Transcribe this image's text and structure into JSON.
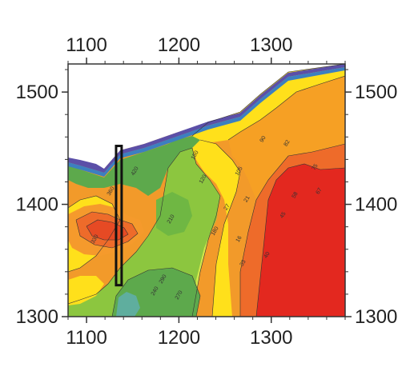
{
  "chart_data": {
    "type": "heatmap",
    "title": "",
    "xlabel": "",
    "ylabel": "",
    "xlim": [
      1080,
      1380
    ],
    "ylim": [
      1300,
      1525
    ],
    "x_ticks": [
      1100,
      1200,
      1300
    ],
    "y_ticks": [
      1300,
      1400,
      1500
    ],
    "x_tick_labels": [
      "1100",
      "1200",
      "1300"
    ],
    "y_tick_labels": [
      "1300",
      "1400",
      "1500"
    ],
    "grid": false,
    "legend": "none",
    "contour_labels": [
      "16",
      "21",
      "27",
      "33",
      "40",
      "45",
      "58",
      "67",
      "75",
      "82",
      "90",
      "105",
      "120",
      "150",
      "180",
      "210",
      "240",
      "270",
      "290",
      "330",
      "360",
      "420"
    ],
    "highlight_box": {
      "x": [
        1132,
        1138
      ],
      "y": [
        1328,
        1452
      ]
    },
    "regions": [
      {
        "name": "purple",
        "color": "#5b4fa8",
        "x": [
          1080,
          1110,
          1130,
          1165,
          1210,
          1245,
          1290,
          1325,
          1370,
          1380,
          1380,
          1325,
          1290,
          1245,
          1210,
          1165,
          1130,
          1110,
          1080
        ],
        "y": [
          1446,
          1442,
          1434,
          1455,
          1465,
          1476,
          1487,
          1508,
          1516,
          1516,
          1518,
          1520,
          1490,
          1481,
          1470,
          1460,
          1438,
          1446,
          1450
        ]
      },
      {
        "name": "blue",
        "color": "#3c6fbf",
        "x": [
          1080,
          1110,
          1130,
          1160,
          1210,
          1245,
          1290,
          1325,
          1380,
          1380,
          1325,
          1290,
          1245,
          1210,
          1160,
          1130,
          1110,
          1080
        ],
        "y": [
          1440,
          1436,
          1430,
          1450,
          1460,
          1472,
          1482,
          1500,
          1512,
          1516,
          1508,
          1487,
          1476,
          1465,
          1455,
          1434,
          1442,
          1446
        ]
      },
      {
        "name": "teal",
        "color": "#5fae9e",
        "x": [
          1135,
          1140,
          1150,
          1160,
          1165,
          1160,
          1150,
          1140
        ],
        "y": [
          1302,
          1312,
          1316,
          1313,
          1305,
          1300,
          1300,
          1300
        ]
      }
    ],
    "bands": [
      {
        "level": "lowest",
        "color": "#6aa84f",
        "note": "dark green band"
      },
      {
        "level": "low",
        "color": "#8cc63f",
        "note": "light green band"
      },
      {
        "level": "mid",
        "color": "#d6e84a",
        "note": "yellow-green band"
      },
      {
        "level": "midhigh",
        "color": "#ffe01b",
        "note": "yellow band"
      },
      {
        "level": "high",
        "color": "#f7a21b",
        "note": "orange band"
      },
      {
        "level": "higher",
        "color": "#ef6a25",
        "note": "dark orange band"
      },
      {
        "level": "highest",
        "color": "#e52421",
        "note": "red band"
      }
    ]
  }
}
